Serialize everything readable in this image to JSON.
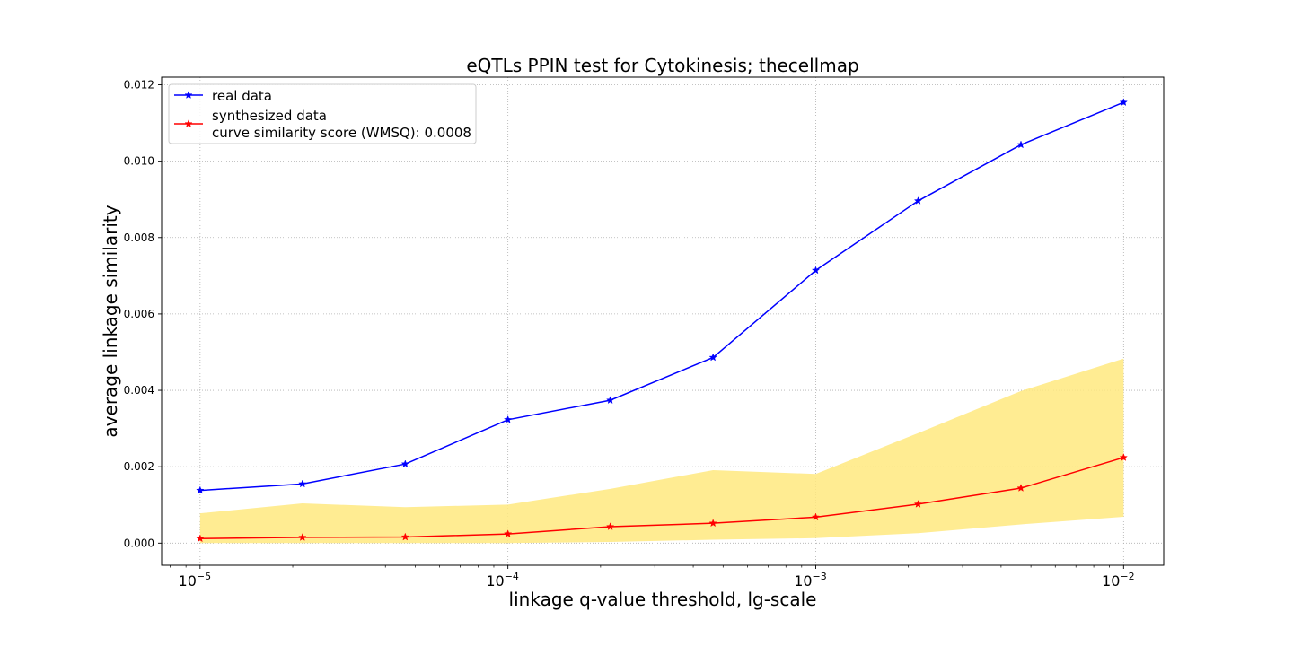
{
  "chart_data": {
    "type": "line",
    "title": "eQTLs PPIN test for Cytokinesis; thecellmap",
    "xlabel": "linkage q-value threshold, lg-scale",
    "ylabel": "average linkage similarity",
    "xscale": "log",
    "xlim": [
      7.5e-06,
      0.0135
    ],
    "ylim": [
      -0.00058,
      0.0122
    ],
    "grid": true,
    "legend_position": "top-left",
    "x": [
      1e-05,
      2.15e-05,
      4.64e-05,
      0.0001,
      0.000215,
      0.000464,
      0.001,
      0.00215,
      0.00464,
      0.01
    ],
    "series": [
      {
        "name": "real data",
        "color": "#0000ff",
        "marker": "star",
        "values": [
          0.00138,
          0.00155,
          0.00207,
          0.00323,
          0.00374,
          0.00486,
          0.00714,
          0.00896,
          0.01043,
          0.01154
        ]
      },
      {
        "name": "synthesized data",
        "color": "#ff0000",
        "marker": "star",
        "values": [
          0.00012,
          0.00015,
          0.00016,
          0.00024,
          0.00043,
          0.00052,
          0.00068,
          0.00102,
          0.00144,
          0.00224
        ]
      }
    ],
    "band": {
      "color": "#ffe97f",
      "lower": [
        0.0,
        0.0,
        0.0,
        0.0,
        3e-05,
        9e-05,
        0.00013,
        0.00026,
        0.00049,
        0.00069
      ],
      "upper": [
        0.00078,
        0.00104,
        0.00094,
        0.00101,
        0.00142,
        0.00191,
        0.00181,
        0.00288,
        0.00398,
        0.00483
      ]
    },
    "legend_extra_line": "curve similarity score (WMSQ): 0.0008",
    "yticks": [
      {
        "value": 0.0,
        "label": "0.000"
      },
      {
        "value": 0.002,
        "label": "0.002"
      },
      {
        "value": 0.004,
        "label": "0.004"
      },
      {
        "value": 0.006,
        "label": "0.006"
      },
      {
        "value": 0.008,
        "label": "0.008"
      },
      {
        "value": 0.01,
        "label": "0.010"
      },
      {
        "value": 0.012,
        "label": "0.012"
      }
    ],
    "xticks": [
      {
        "value": 1e-05,
        "base": "10",
        "exp": "−5"
      },
      {
        "value": 0.0001,
        "base": "10",
        "exp": "−4"
      },
      {
        "value": 0.001,
        "base": "10",
        "exp": "−3"
      },
      {
        "value": 0.01,
        "base": "10",
        "exp": "−2"
      }
    ]
  }
}
